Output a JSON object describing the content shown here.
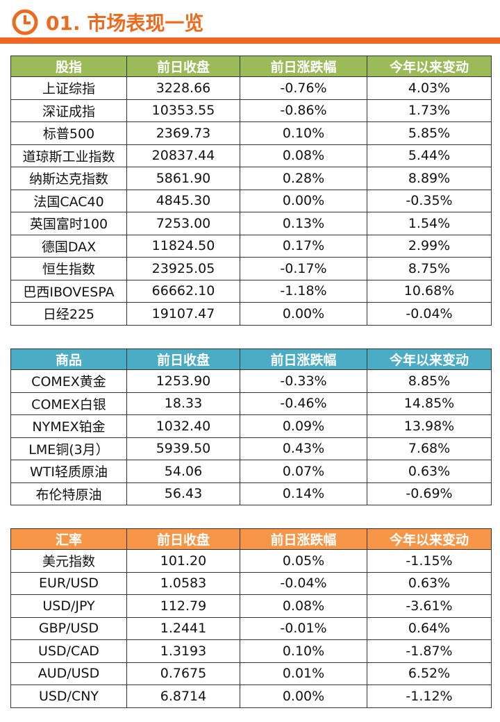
{
  "header": {
    "title": "01. 市场表现一览"
  },
  "tables": [
    {
      "color": "#9bbb59",
      "columns": [
        "股指",
        "前日收盘",
        "前日涨跌幅",
        "今年以来变动"
      ],
      "rows": [
        [
          "上证综指",
          "3228.66",
          "-0.76%",
          "4.03%"
        ],
        [
          "深证成指",
          "10353.55",
          "-0.86%",
          "1.73%"
        ],
        [
          "标普500",
          "2369.73",
          "0.10%",
          "5.85%"
        ],
        [
          "道琼斯工业指数",
          "20837.44",
          "0.08%",
          "5.44%"
        ],
        [
          "纳斯达克指数",
          "5861.90",
          "0.28%",
          "8.89%"
        ],
        [
          "法国CAC40",
          "4845.30",
          "0.00%",
          "-0.35%"
        ],
        [
          "英国富时100",
          "7253.00",
          "0.13%",
          "1.54%"
        ],
        [
          "德国DAX",
          "11824.50",
          "0.17%",
          "2.99%"
        ],
        [
          "恒生指数",
          "23925.05",
          "-0.17%",
          "8.75%"
        ],
        [
          "巴西IBOVESPA",
          "66662.10",
          "-1.18%",
          "10.68%"
        ],
        [
          "日经225",
          "19107.47",
          "0.00%",
          "-0.04%"
        ]
      ]
    },
    {
      "color": "#4bacc6",
      "columns": [
        "商品",
        "前日收盘",
        "前日涨跌幅",
        "今年以来变动"
      ],
      "rows": [
        [
          "COMEX黄金",
          "1253.90",
          "-0.33%",
          "8.85%"
        ],
        [
          "COMEX白银",
          "18.33",
          "-0.46%",
          "14.85%"
        ],
        [
          "NYMEX铂金",
          "1032.40",
          "0.09%",
          "13.98%"
        ],
        [
          "LME铜(3月）",
          "5939.50",
          "0.43%",
          "7.68%"
        ],
        [
          "WTI轻质原油",
          "54.06",
          "0.07%",
          "0.63%"
        ],
        [
          "布伦特原油",
          "56.43",
          "0.14%",
          "-0.69%"
        ]
      ]
    },
    {
      "color": "#f79646",
      "columns": [
        "汇率",
        "前日收盘",
        "前日涨跌幅",
        "今年以来变动"
      ],
      "rows": [
        [
          "美元指数",
          "101.20",
          "0.05%",
          "-1.15%"
        ],
        [
          "EUR/USD",
          "1.0583",
          "-0.04%",
          "0.63%"
        ],
        [
          "USD/JPY",
          "112.79",
          "0.08%",
          "-3.61%"
        ],
        [
          "GBP/USD",
          "1.2441",
          "-0.01%",
          "0.64%"
        ],
        [
          "USD/CAD",
          "1.3193",
          "0.10%",
          "-1.87%"
        ],
        [
          "AUD/USD",
          "0.7675",
          "0.01%",
          "6.52%"
        ],
        [
          "USD/CNY",
          "6.8714",
          "0.00%",
          "-1.12%"
        ]
      ]
    }
  ]
}
